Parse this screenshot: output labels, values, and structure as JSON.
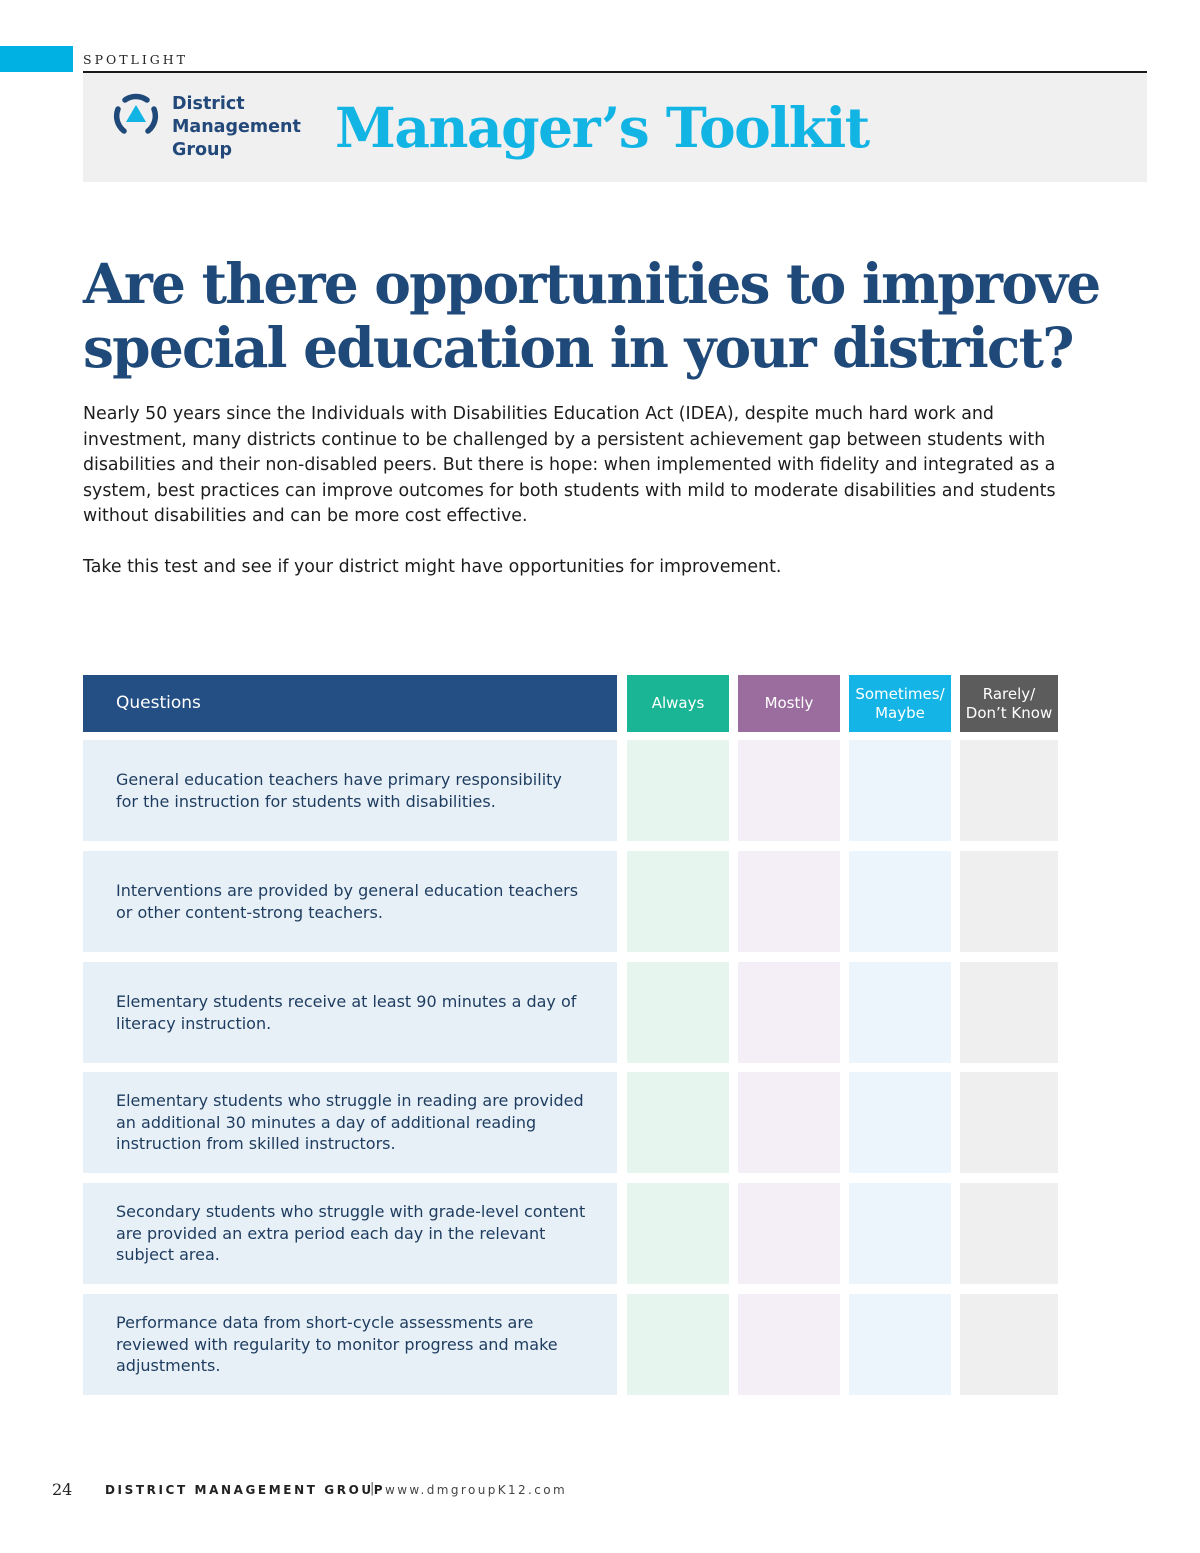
{
  "header": {
    "section": "SPOTLIGHT",
    "logo_lines": [
      "District",
      "Management",
      "Group"
    ],
    "banner_title": "Manager’s Toolkit"
  },
  "article": {
    "headline": "Are there opportunities to improve special education in your district?",
    "intro": "Nearly 50 years since the Individuals with Disabilities Education Act (IDEA), despite much hard work and investment, many districts continue to be challenged by a persistent achievement gap between students with disabilities and their non-disabled peers. But there is hope: when implemented with fidelity and integrated as a system, best practices can improve outcomes for both students with mild to moderate disabilities and students without disabilities and can be more cost effective.",
    "cta": "Take this test and see if your district might have opportunities for improvement."
  },
  "quiz": {
    "question_header": "Questions",
    "options": [
      {
        "label": "Always",
        "header_color": "#19b594",
        "cell_color": "#e7f5ef"
      },
      {
        "label": "Mostly",
        "header_color": "#9b6c9e",
        "cell_color": "#f4eef6"
      },
      {
        "label": "Sometimes/ Maybe",
        "header_color": "#14b5e6",
        "cell_color": "#ecf5fc"
      },
      {
        "label": "Rarely/ Don’t Know",
        "header_color": "#5c5c5c",
        "cell_color": "#efefef"
      }
    ],
    "questions": [
      "General education teachers have primary responsibility for the instruction for students with disabilities.",
      "Interventions are provided by general education teachers or other content-strong teachers.",
      "Elementary students receive at least 90 minutes a day of literacy instruction.",
      "Elementary students who struggle in reading are provided an additional 30 minutes a day of additional reading instruction from skilled instructors.",
      "Secondary students who struggle with grade-level content are provided an extra period each day in the relevant subject area.",
      "Performance data from short-cycle assessments are reviewed with regularity to monitor progress and make adjustments."
    ]
  },
  "footer": {
    "page_number": "24",
    "org": "DISTRICT MANAGEMENT GROUP",
    "separator": "|",
    "url": "www.dmgroupK12.com"
  },
  "colors": {
    "accent": "#00b2e3",
    "headline": "#1e4979",
    "header_navy": "#234f85",
    "question_cell": "#e8f0f7"
  }
}
